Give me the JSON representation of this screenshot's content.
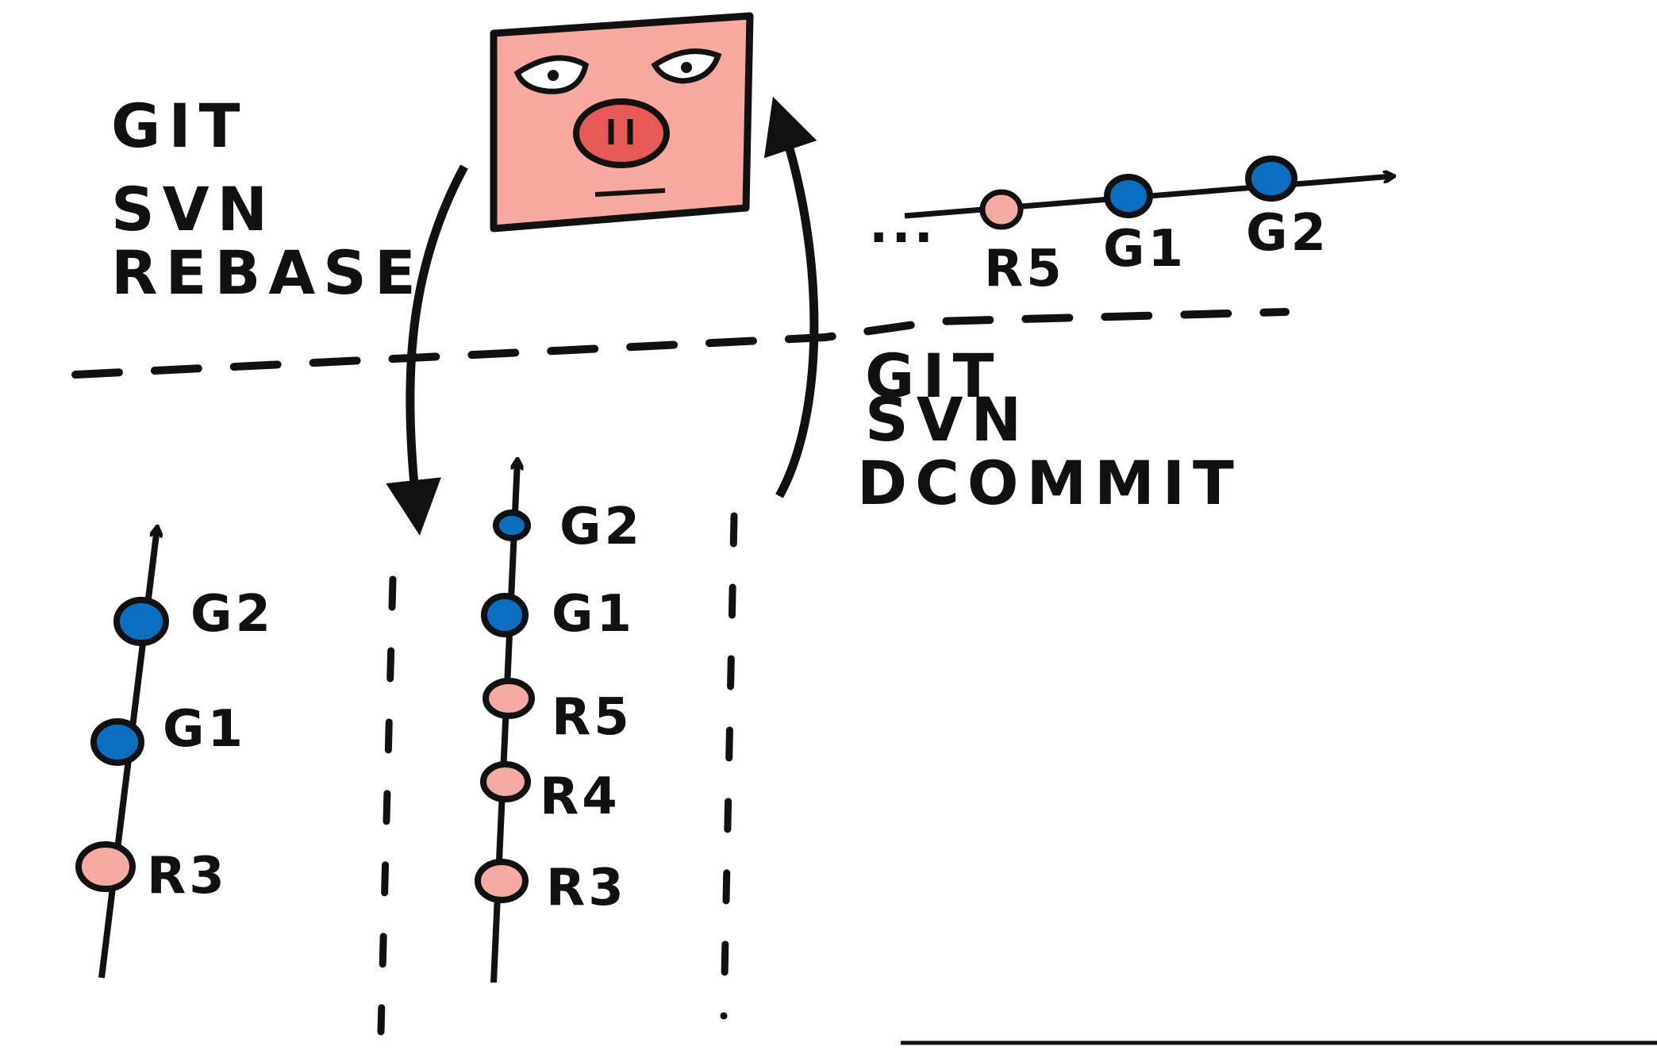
{
  "labels": {
    "rebase": [
      "GIT",
      "SVN",
      "REBASE"
    ],
    "dcommit": [
      "GIT",
      "SVN",
      "DCOMMIT"
    ]
  },
  "svn_repo": {
    "icon": "pig-face-icon",
    "prefix": "...",
    "commits": [
      {
        "label": "R5",
        "kind": "svn"
      },
      {
        "label": "G1",
        "kind": "git"
      },
      {
        "label": "G2",
        "kind": "git"
      }
    ]
  },
  "local_before": {
    "commits": [
      {
        "label": "R3",
        "kind": "svn"
      },
      {
        "label": "G1",
        "kind": "git"
      },
      {
        "label": "G2",
        "kind": "git"
      }
    ]
  },
  "local_after": {
    "commits": [
      {
        "label": "R3",
        "kind": "svn"
      },
      {
        "label": "R4",
        "kind": "svn"
      },
      {
        "label": "R5",
        "kind": "svn"
      },
      {
        "label": "G1",
        "kind": "git"
      },
      {
        "label": "G2",
        "kind": "git"
      }
    ]
  },
  "colors": {
    "svn_commit": "#f4aaa0",
    "git_commit": "#0a6fc0",
    "pig_face": "#f7a99f",
    "pig_snout": "#e85a55",
    "ink": "#111111"
  }
}
